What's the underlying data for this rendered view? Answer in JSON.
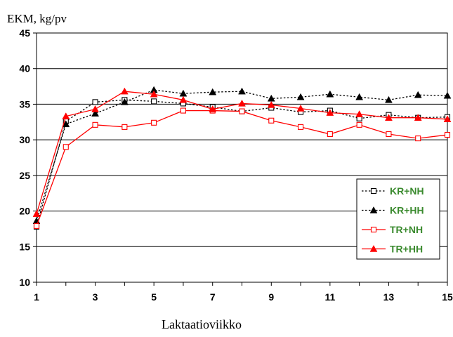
{
  "chart_data": {
    "type": "line",
    "title": "",
    "ylabel": "EKM, kg/pv",
    "xlabel": "Laktaatioviikko",
    "xlim": [
      1,
      15
    ],
    "ylim": [
      10,
      45
    ],
    "x_ticks": [
      "1",
      "3",
      "5",
      "7",
      "9",
      "11",
      "13",
      "15"
    ],
    "y_ticks": [
      "10",
      "15",
      "20",
      "25",
      "30",
      "35",
      "40",
      "45"
    ],
    "grid": "horizontal",
    "legend_position": "bottom-right",
    "x": [
      1,
      2,
      3,
      4,
      5,
      6,
      7,
      8,
      9,
      10,
      11,
      12,
      13,
      14,
      15
    ],
    "series": [
      {
        "name": "KR+NH",
        "color": "#000000",
        "dash": "dotted",
        "marker": "square-open",
        "values": [
          17.8,
          32.6,
          35.3,
          35.6,
          35.4,
          35.1,
          34.6,
          34.0,
          34.5,
          33.9,
          34.1,
          33.0,
          33.5,
          33.1,
          33.2
        ]
      },
      {
        "name": "KR+HH",
        "color": "#000000",
        "dash": "dotted",
        "marker": "triangle-filled",
        "values": [
          18.6,
          32.2,
          33.7,
          35.3,
          37.0,
          36.5,
          36.7,
          36.8,
          35.8,
          36.0,
          36.4,
          36.0,
          35.6,
          36.3,
          36.2
        ]
      },
      {
        "name": "TR+NH",
        "color": "#ff0000",
        "dash": "solid",
        "marker": "square-open",
        "values": [
          17.9,
          29.0,
          32.1,
          31.8,
          32.4,
          34.1,
          34.1,
          34.0,
          32.7,
          31.8,
          30.8,
          32.1,
          30.8,
          30.2,
          30.7
        ]
      },
      {
        "name": "TR+HH",
        "color": "#ff0000",
        "dash": "solid",
        "marker": "triangle-filled",
        "values": [
          19.6,
          33.3,
          34.3,
          36.8,
          36.4,
          35.6,
          34.3,
          35.1,
          34.9,
          34.4,
          33.8,
          33.6,
          33.1,
          33.1,
          32.9
        ]
      }
    ]
  }
}
